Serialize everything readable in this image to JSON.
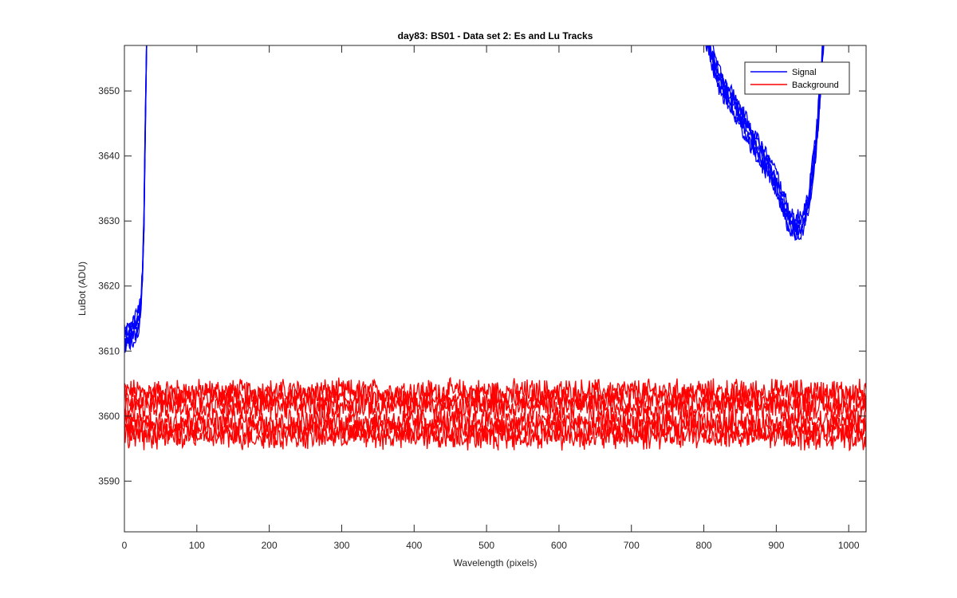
{
  "chart_data": {
    "type": "line",
    "title": "day83: BS01 - Data set 2: Es and Lu Tracks",
    "xlabel": "Wavelength (pixels)",
    "ylabel": "LuBot (ADU)",
    "xlim": [
      0,
      1024
    ],
    "ylim": [
      3582.2,
      3657
    ],
    "xticks": [
      0,
      100,
      200,
      300,
      400,
      500,
      600,
      700,
      800,
      900,
      1000
    ],
    "yticks": [
      3590,
      3600,
      3610,
      3620,
      3630,
      3640,
      3650
    ],
    "grid": false,
    "legend_position": "top-right",
    "colors": {
      "signal": "#0000ff",
      "background": "#ff0000",
      "axes": "#262626"
    },
    "series": [
      {
        "name": "Signal",
        "color": "#0000ff",
        "traces": 6,
        "points": [
          [
            0,
            3611.5
          ],
          [
            5,
            3612.2
          ],
          [
            10,
            3612.8
          ],
          [
            15,
            3613.6
          ],
          [
            20,
            3615.0
          ],
          [
            23,
            3617.5
          ],
          [
            25,
            3622
          ],
          [
            27,
            3630
          ],
          [
            29,
            3645
          ],
          [
            31,
            3660
          ],
          [
            800,
            3660
          ],
          [
            820,
            3652
          ],
          [
            840,
            3648
          ],
          [
            860,
            3644
          ],
          [
            880,
            3640
          ],
          [
            900,
            3636
          ],
          [
            915,
            3631
          ],
          [
            925,
            3629
          ],
          [
            935,
            3629.5
          ],
          [
            945,
            3633
          ],
          [
            955,
            3642
          ],
          [
            962,
            3652
          ],
          [
            966,
            3660
          ]
        ],
        "note_keys": []
      },
      {
        "name": "Background",
        "color": "#ff0000",
        "traces": 6,
        "mean_levels": [
          3603.8,
          3602.6,
          3601.4,
          3599.2,
          3598.0,
          3596.8
        ],
        "noise_amplitude": 1.6,
        "x_range": [
          0,
          1024
        ]
      }
    ]
  }
}
